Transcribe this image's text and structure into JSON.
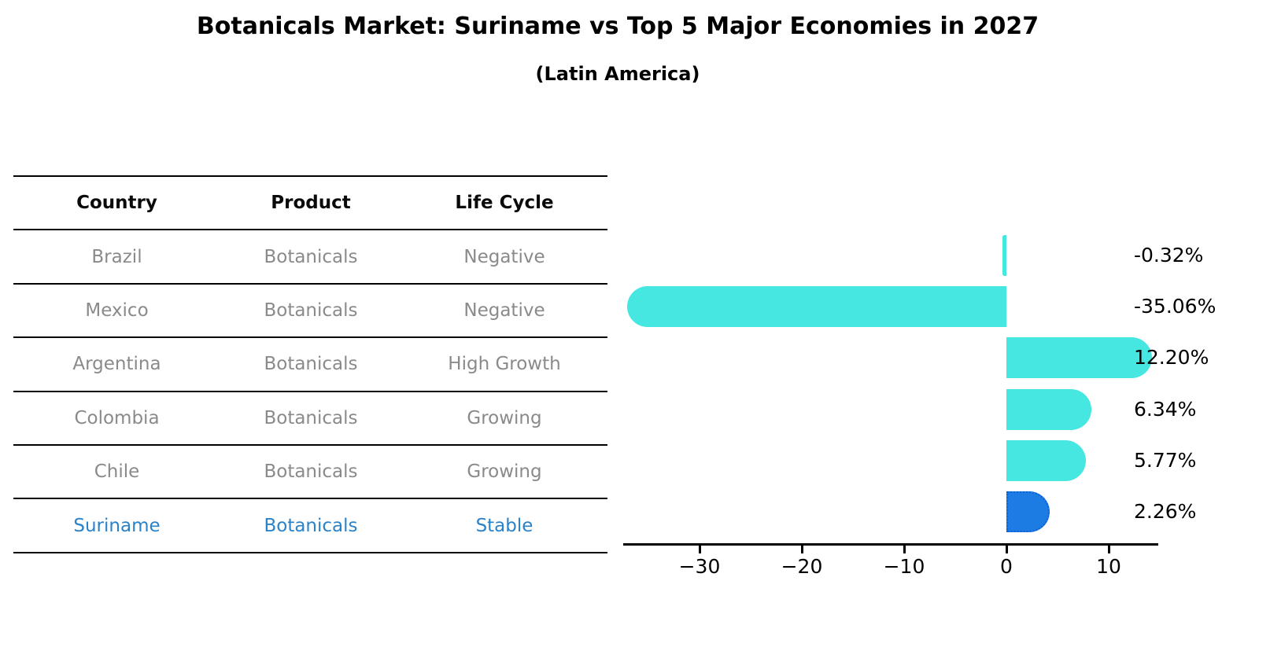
{
  "title": "Botanicals Market: Suriname vs Top 5 Major Economies in 2027",
  "subtitle": "(Latin America)",
  "table": {
    "headers": [
      "Country",
      "Product",
      "Life Cycle"
    ],
    "rows": [
      {
        "country": "Brazil",
        "product": "Botanicals",
        "life_cycle": "Negative",
        "highlight": false
      },
      {
        "country": "Mexico",
        "product": "Botanicals",
        "life_cycle": "Negative",
        "highlight": false
      },
      {
        "country": "Argentina",
        "product": "Botanicals",
        "life_cycle": "High Growth",
        "highlight": false
      },
      {
        "country": "Colombia",
        "product": "Botanicals",
        "life_cycle": "Growing",
        "highlight": false
      },
      {
        "country": "Chile",
        "product": "Botanicals",
        "life_cycle": "Growing",
        "highlight": false
      },
      {
        "country": "Suriname",
        "product": "Botanicals",
        "life_cycle": "Stable",
        "highlight": true
      }
    ]
  },
  "chart_data": {
    "type": "bar",
    "orientation": "horizontal",
    "title": "Botanicals Market: Suriname vs Top 5 Major Economies in 2027",
    "subtitle": "(Latin America)",
    "categories": [
      "Brazil",
      "Mexico",
      "Argentina",
      "Colombia",
      "Chile",
      "Suriname"
    ],
    "values": [
      -0.32,
      -35.06,
      12.2,
      6.34,
      5.77,
      2.26
    ],
    "value_labels": [
      "-0.32%",
      "-35.06%",
      "12.20%",
      "6.34%",
      "5.77%",
      "2.26%"
    ],
    "highlight_category": "Suriname",
    "x_ticks": [
      -30,
      -20,
      -10,
      0,
      10
    ],
    "x_tick_labels": [
      "−30",
      "−20",
      "−10",
      "0",
      "10"
    ],
    "xlim": [
      -37.5,
      14.8
    ],
    "grid": false,
    "legend": "none",
    "colors": {
      "bar": "#46e7e0",
      "highlight_bar": "#1d7ce4",
      "highlight_border": "#0e5fd8",
      "highlight_text": "#2a82c8",
      "row_text": "#8a8a8a",
      "header_text": "#0a0a0a",
      "axis": "#000000",
      "value_label": "#000000"
    }
  }
}
